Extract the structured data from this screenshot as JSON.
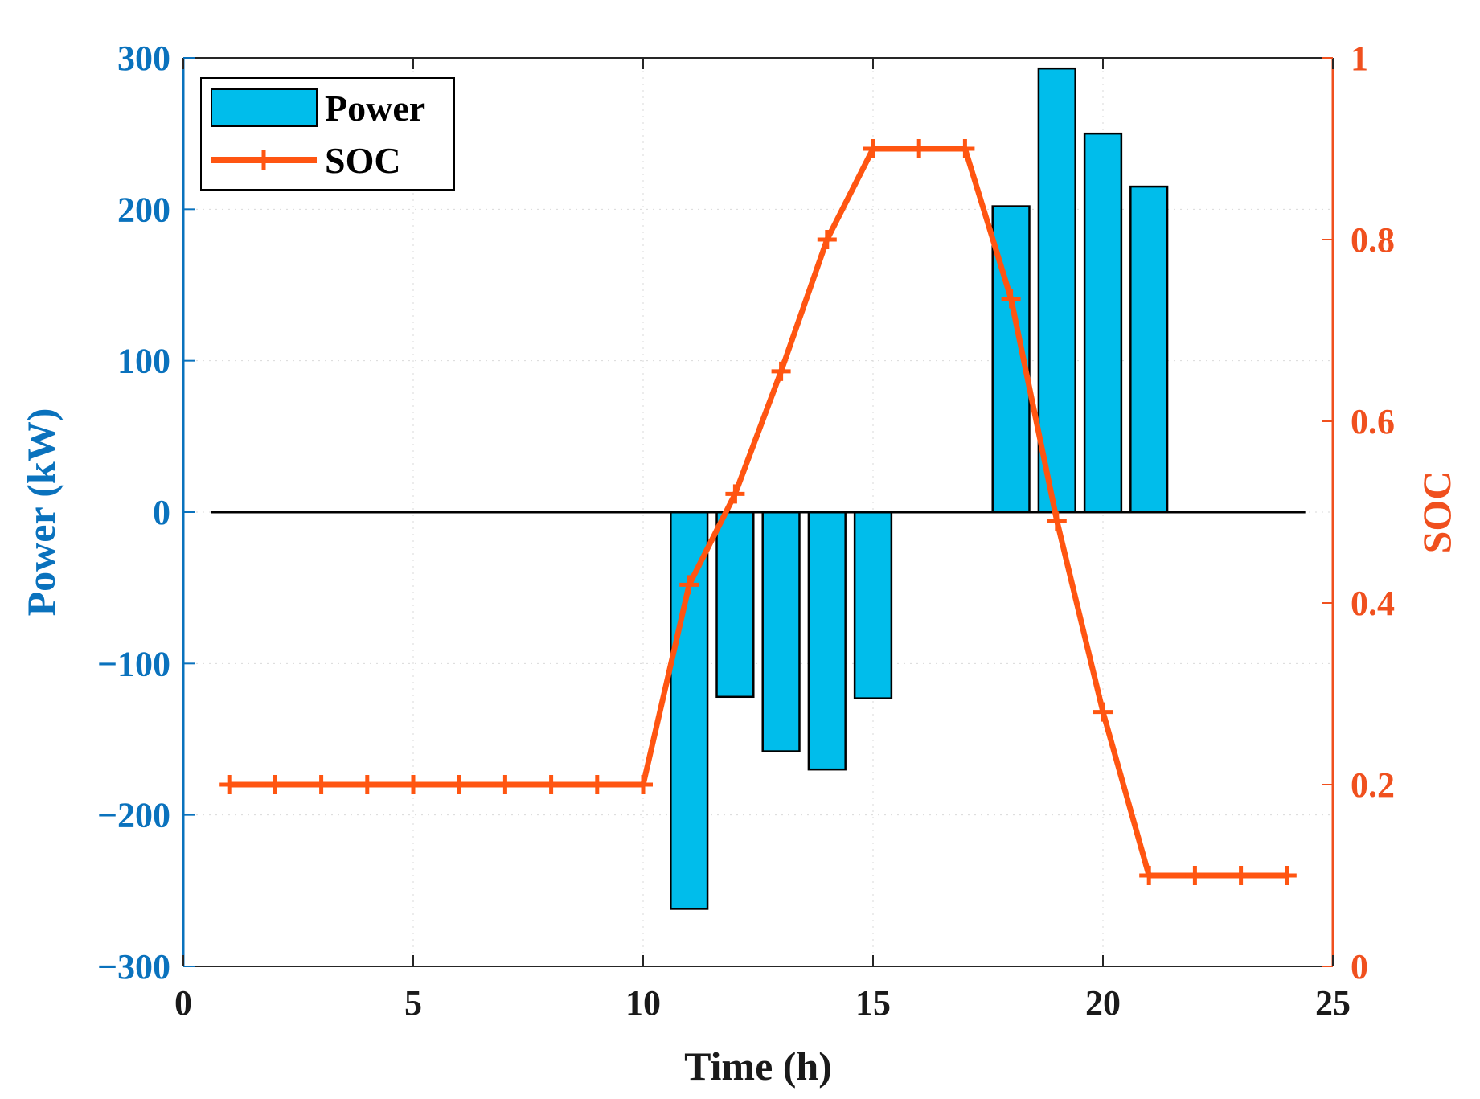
{
  "chart_data": {
    "type": "bar+line",
    "x": [
      1,
      2,
      3,
      4,
      5,
      6,
      7,
      8,
      9,
      10,
      11,
      12,
      13,
      14,
      15,
      16,
      17,
      18,
      19,
      20,
      21,
      22,
      23,
      24
    ],
    "series": [
      {
        "name": "Power",
        "type": "bar",
        "axis": "left",
        "values": [
          0,
          0,
          0,
          0,
          0,
          0,
          0,
          0,
          0,
          0,
          -262,
          -122,
          -158,
          -170,
          -123,
          0,
          0,
          202,
          293,
          250,
          215,
          0,
          0,
          0
        ]
      },
      {
        "name": "SOC",
        "type": "line",
        "axis": "right",
        "marker": "plus",
        "values": [
          0.2,
          0.2,
          0.2,
          0.2,
          0.2,
          0.2,
          0.2,
          0.2,
          0.2,
          0.2,
          0.42,
          0.52,
          0.655,
          0.8,
          0.9,
          0.9,
          0.9,
          0.735,
          0.49,
          0.28,
          0.1,
          0.1,
          0.1,
          0.1
        ]
      }
    ],
    "xlabel": "Time (h)",
    "ylabel_left": "Power (kW)",
    "ylabel_right": "SOC",
    "xlim": [
      0,
      25
    ],
    "ylim_left": [
      -300,
      300
    ],
    "ylim_right": [
      0,
      1
    ],
    "xticks": [
      0,
      5,
      10,
      15,
      20,
      25
    ],
    "yticks_left": [
      -300,
      -200,
      -100,
      0,
      100,
      200,
      300
    ],
    "yticks_left_labels": [
      "−300",
      "−200",
      "−100",
      "0",
      "100",
      "200",
      "300"
    ],
    "yticks_right": [
      0,
      0.2,
      0.4,
      0.6,
      0.8,
      1
    ],
    "yticks_right_labels": [
      "0",
      "0.2",
      "0.4",
      "0.6",
      "0.8",
      "1"
    ],
    "legend": {
      "placement": "top-left",
      "entries": [
        "Power",
        "SOC"
      ]
    },
    "grid": "dotted",
    "colors": {
      "bar_fill": "#00BDEB",
      "bar_edge": "#000000",
      "line": "#FF5511",
      "left_axis": "#0A72BD",
      "right_axis": "#F0501E",
      "zero_line": "#000000"
    }
  }
}
